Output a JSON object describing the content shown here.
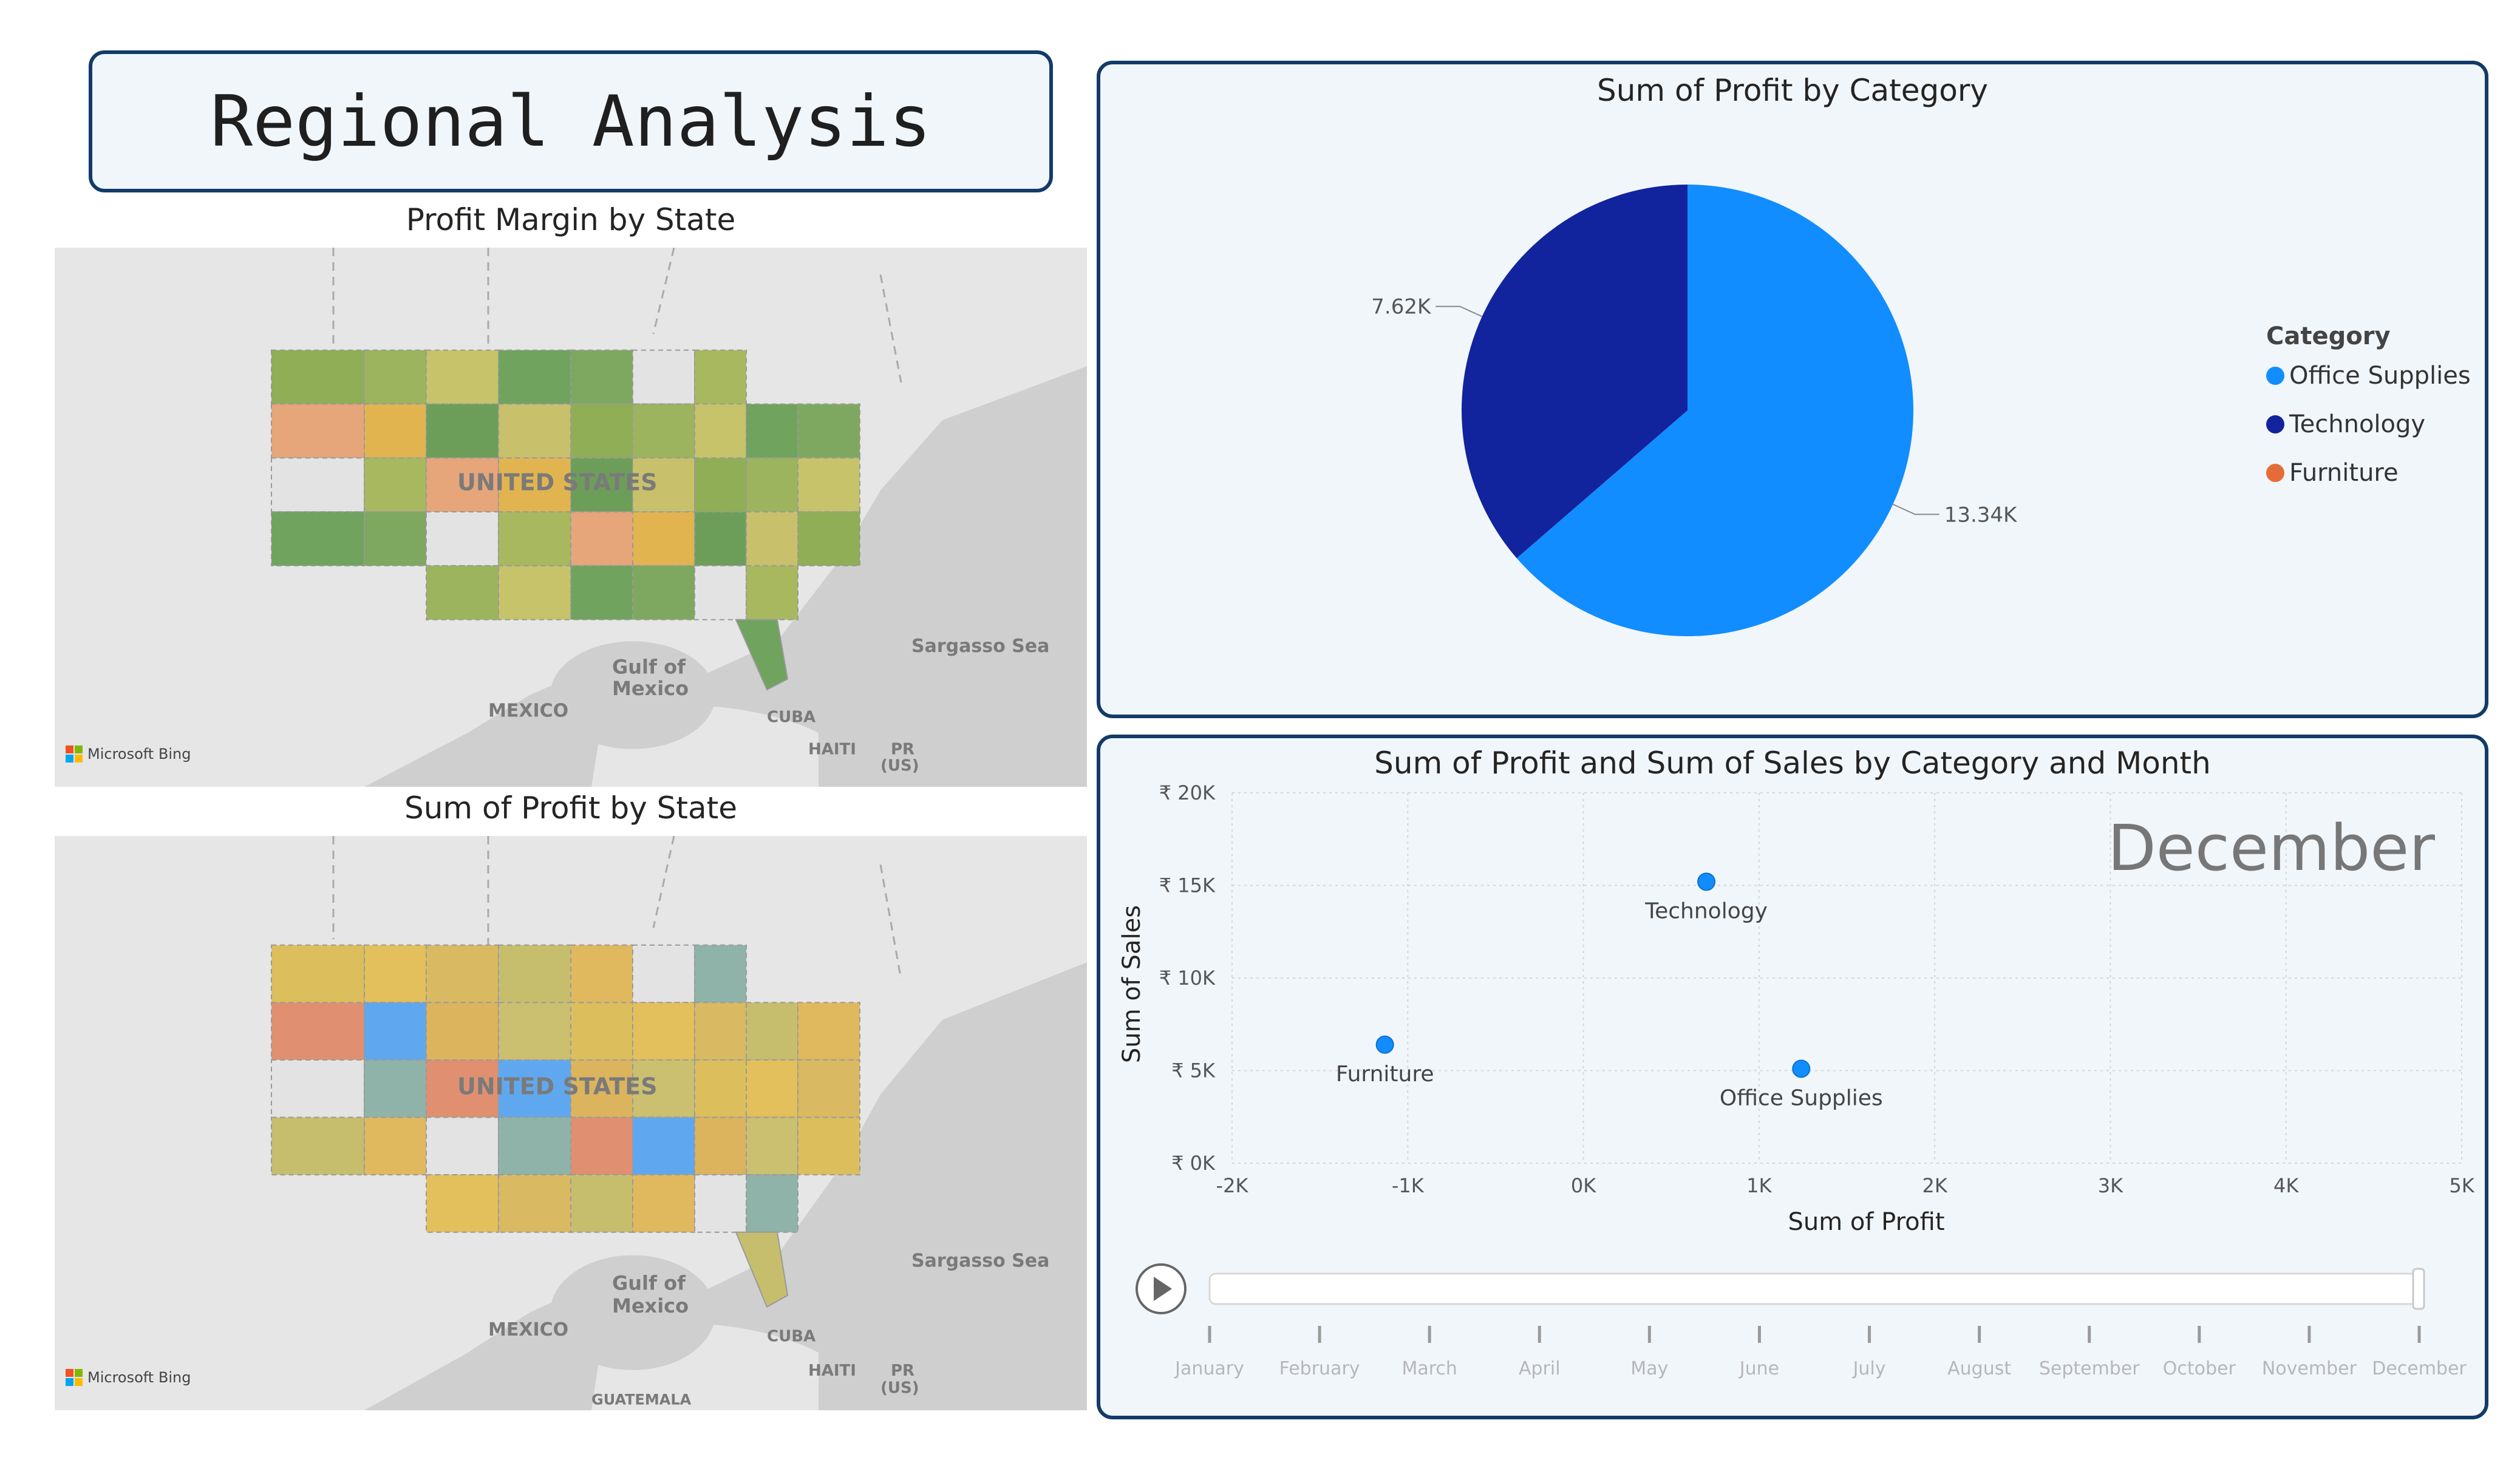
{
  "page_title": "Regional Analysis",
  "maps": [
    {
      "title": "Profit Margin by State",
      "labels": {
        "country": "UNITED STATES",
        "gulf": [
          "Gulf of",
          "Mexico"
        ],
        "sea": "Sargasso Sea",
        "mexico": "MEXICO",
        "cuba": "CUBA",
        "haiti": "HAITI",
        "pr": [
          "PR",
          "(US)"
        ],
        "guatemala": ""
      },
      "attribution": "Microsoft Bing"
    },
    {
      "title": "Sum of Profit by State",
      "labels": {
        "country": "UNITED STATES",
        "gulf": [
          "Gulf of",
          "Mexico"
        ],
        "sea": "Sargasso Sea",
        "mexico": "MEXICO",
        "cuba": "CUBA",
        "haiti": "HAITI",
        "pr": [
          "PR",
          "(US)"
        ],
        "guatemala": "GUATEMALA"
      },
      "attribution": "Microsoft Bing"
    }
  ],
  "colors": {
    "office_supplies": "#118dff",
    "technology": "#12239e",
    "furniture": "#e66c37",
    "border": "#123b69",
    "card_bg": "#f1f6fb"
  },
  "chart_data": [
    {
      "type": "pie",
      "title": "Sum of Profit by Category",
      "legend_title": "Category",
      "legend_position": "right",
      "slices": [
        {
          "label": "Office Supplies",
          "value": 13340,
          "display": "13.34K",
          "color": "#118dff"
        },
        {
          "label": "Technology",
          "value": 7620,
          "display": "7.62K",
          "color": "#12239e"
        },
        {
          "label": "Furniture",
          "value": 0,
          "display": "",
          "color": "#e66c37"
        }
      ]
    },
    {
      "type": "scatter",
      "title": "Sum of Profit and Sum of Sales by Category and Month",
      "xlabel": "Sum of Profit",
      "ylabel": "Sum of Sales",
      "xlim": [
        -2000,
        5000
      ],
      "ylim": [
        0,
        20000
      ],
      "xticks": [
        {
          "value": -2000,
          "label": "-2K"
        },
        {
          "value": -1000,
          "label": "-1K"
        },
        {
          "value": 0,
          "label": "0K"
        },
        {
          "value": 1000,
          "label": "1K"
        },
        {
          "value": 2000,
          "label": "2K"
        },
        {
          "value": 3000,
          "label": "3K"
        },
        {
          "value": 4000,
          "label": "4K"
        },
        {
          "value": 5000,
          "label": "5K"
        }
      ],
      "yticks": [
        {
          "value": 0,
          "label": "₹ 0K"
        },
        {
          "value": 5000,
          "label": "₹ 5K"
        },
        {
          "value": 10000,
          "label": "₹ 10K"
        },
        {
          "value": 15000,
          "label": "₹ 15K"
        },
        {
          "value": 20000,
          "label": "₹ 20K"
        }
      ],
      "grid": true,
      "play_axis_current": "December",
      "points": [
        {
          "label": "Technology",
          "x": 700,
          "y": 15200
        },
        {
          "label": "Furniture",
          "x": -1130,
          "y": 6400
        },
        {
          "label": "Office Supplies",
          "x": 1240,
          "y": 5100
        }
      ],
      "months": [
        "January",
        "February",
        "March",
        "April",
        "May",
        "June",
        "July",
        "August",
        "September",
        "October",
        "November",
        "December"
      ],
      "point_color": "#118dff"
    }
  ]
}
